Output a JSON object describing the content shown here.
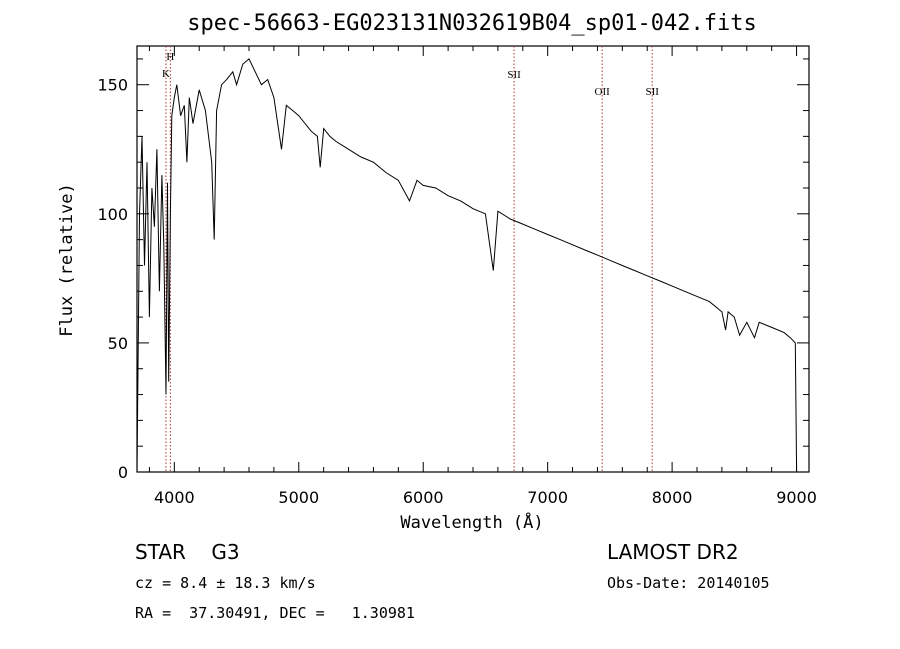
{
  "chart_data": {
    "type": "line",
    "title": "spec-56663-EG023131N032619B04_sp01-042.fits",
    "xlabel": "Wavelength (Å)",
    "ylabel": "Flux (relative)",
    "xlim": [
      3700,
      9100
    ],
    "ylim": [
      0,
      165
    ],
    "x_ticks": [
      "4000",
      "5000",
      "6000",
      "7000",
      "8000",
      "9000"
    ],
    "y_ticks": [
      "0",
      "50",
      "100",
      "150"
    ],
    "series": [
      {
        "x": [
          3700,
          3720,
          3740,
          3760,
          3780,
          3800,
          3820,
          3840,
          3860,
          3880,
          3900,
          3915,
          3933,
          3945,
          3955,
          3968,
          3980,
          4000,
          4020,
          4050,
          4080,
          4101,
          4120,
          4150,
          4200,
          4250,
          4300,
          4320,
          4340,
          4380,
          4420,
          4470,
          4500,
          4550,
          4600,
          4650,
          4700,
          4750,
          4800,
          4861,
          4900,
          4950,
          5000,
          5050,
          5100,
          5150,
          5172,
          5200,
          5250,
          5300,
          5400,
          5500,
          5600,
          5700,
          5800,
          5890,
          5950,
          6000,
          6100,
          6200,
          6300,
          6400,
          6500,
          6563,
          6600,
          6700,
          6800,
          6900,
          7000,
          7100,
          7200,
          7300,
          7400,
          7500,
          7600,
          7700,
          7800,
          7900,
          8000,
          8100,
          8200,
          8300,
          8400,
          8430,
          8450,
          8500,
          8542,
          8600,
          8662,
          8700,
          8800,
          8900,
          8950,
          8990,
          9000
        ],
        "values": [
          0,
          100,
          130,
          80,
          120,
          60,
          110,
          95,
          125,
          70,
          115,
          88,
          30,
          112,
          35,
          100,
          138,
          145,
          150,
          138,
          142,
          120,
          145,
          135,
          148,
          140,
          120,
          90,
          140,
          150,
          152,
          155,
          150,
          158,
          160,
          155,
          150,
          152,
          145,
          125,
          142,
          140,
          138,
          135,
          132,
          130,
          118,
          133,
          130,
          128,
          125,
          122,
          120,
          116,
          113,
          105,
          113,
          111,
          110,
          107,
          105,
          102,
          100,
          78,
          101,
          98,
          96,
          94,
          92,
          90,
          88,
          86,
          84,
          82,
          80,
          78,
          76,
          74,
          72,
          70,
          68,
          66,
          62,
          55,
          62,
          60,
          53,
          58,
          52,
          58,
          56,
          54,
          52,
          50,
          0
        ]
      }
    ],
    "lines": [
      {
        "label": "H",
        "x": 3968
      },
      {
        "label": "K",
        "x": 3933
      },
      {
        "label": "SII",
        "x": 6730
      },
      {
        "label": "OII",
        "x": 7438
      },
      {
        "label": "SII",
        "x": 7840
      }
    ]
  },
  "info": {
    "class_line": "STAR    G3",
    "survey": "LAMOST DR2",
    "cz_line": "cz = 8.4 ± 18.3 km/s",
    "obs_date": "Obs-Date: 20140105",
    "coords": "RA =  37.30491, DEC =   1.30981"
  }
}
